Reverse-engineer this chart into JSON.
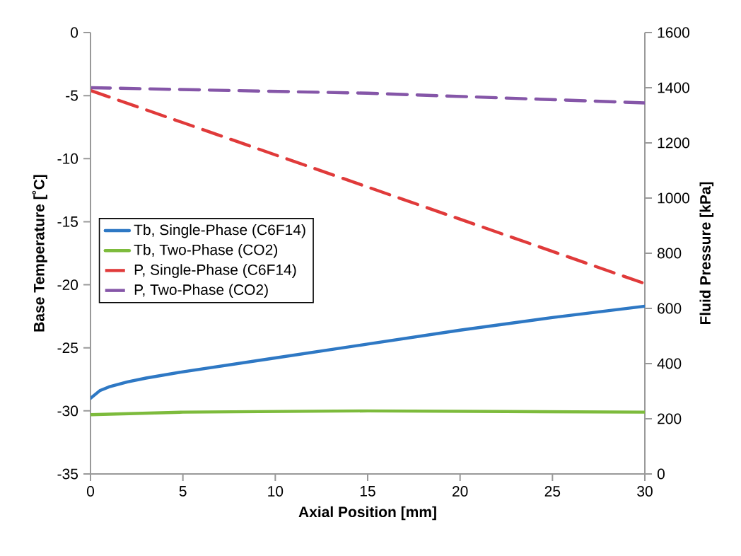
{
  "chart_data": {
    "type": "line",
    "xlabel": "Axial Position [mm]",
    "ylabel": "Base Temperature [˚C]",
    "y2label": "Fluid Pressure [kPa]",
    "xlim": [
      0,
      30
    ],
    "xticks": [
      0,
      5,
      10,
      15,
      20,
      25,
      30
    ],
    "ylim": [
      -35,
      0
    ],
    "yticks": [
      -35,
      -30,
      -25,
      -20,
      -15,
      -10,
      -5,
      0
    ],
    "y2lim": [
      0,
      1600
    ],
    "y2ticks": [
      0,
      200,
      400,
      600,
      800,
      1000,
      1200,
      1400,
      1600
    ],
    "legend": "left",
    "grid": false,
    "series": [
      {
        "name": "Tb, Single-Phase (C6F14)",
        "color": "#2e78c4",
        "line_style": "solid",
        "x": [
          0,
          0.5,
          1,
          2,
          3,
          5,
          10,
          15,
          20,
          25,
          30
        ],
        "values": [
          -29.0,
          -28.4,
          -28.1,
          -27.7,
          -27.4,
          -26.9,
          -25.8,
          -24.7,
          -23.6,
          -22.6,
          -21.7
        ]
      },
      {
        "name": "Tb, Two-Phase (CO2)",
        "color": "#7dbb3c",
        "line_style": "solid",
        "x": [
          0,
          5,
          15,
          30
        ],
        "values": [
          -30.3,
          -30.1,
          -30.0,
          -30.1
        ]
      },
      {
        "name": "P, Single-Phase (C6F14)",
        "color": "#e03a3a",
        "line_style": "dashed",
        "axis": "y2",
        "x": [
          0,
          30
        ],
        "values": [
          1390,
          690
        ]
      },
      {
        "name": "P, Two-Phase (CO2)",
        "color": "#8556a8",
        "line_style": "dashed",
        "axis": "y2",
        "x": [
          0,
          15,
          30
        ],
        "values": [
          1400,
          1380,
          1345
        ]
      }
    ]
  }
}
